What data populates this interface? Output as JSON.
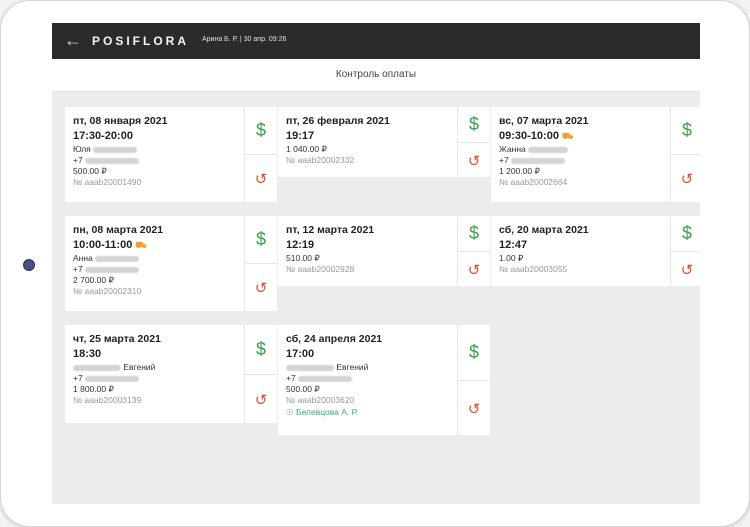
{
  "app": {
    "logo": "POSIFLORA",
    "user_info": "Арина Б. Р. | 30 апр. 09:26",
    "page_title": "Контроль оплаты"
  },
  "icons": {
    "back": "arrow-left-icon",
    "pay": "dollar-icon",
    "refund": "refund-icon",
    "delivery": "delivery-truck-icon",
    "courier": "courier-icon"
  },
  "colors": {
    "pay": "#3aa14a",
    "refund": "#e0502c",
    "topbar": "#2b2b2b",
    "courier": "#3aa97a"
  },
  "orders": [
    {
      "date": "пт, 08 января 2021",
      "time": "17:30-20:00",
      "name": "Юля",
      "phone": "+7",
      "amount": "500.00 ₽",
      "number": "№ aaab20001490"
    },
    {
      "date": "пт, 26 февраля 2021",
      "time": "19:17",
      "amount": "1 040.00 ₽",
      "number": "№ aaab20002332"
    },
    {
      "date": "вс, 07 марта 2021",
      "time": "09:30-10:00",
      "name": "Жанна",
      "phone": "+7",
      "amount": "1 200.00 ₽",
      "number": "№ aaab20002664"
    },
    {
      "date": "пн, 08 марта 2021",
      "time": "10:00-11:00",
      "name": "Анна",
      "phone": "+7",
      "amount": "2 700.00 ₽",
      "number": "№ aaab20002310"
    },
    {
      "date": "пт, 12 марта 2021",
      "time": "12:19",
      "amount": "510.00 ₽",
      "number": "№ aaab20002928"
    },
    {
      "date": "сб, 20 марта 2021",
      "time": "12:47",
      "amount": "1.00 ₽",
      "number": "№ aaab20003055"
    },
    {
      "date": "чт, 25 марта 2021",
      "time": "18:30",
      "name": "Евгений",
      "phone": "+7",
      "amount": "1 800.00 ₽",
      "number": "№ aaab20003139"
    },
    {
      "date": "сб, 24 апреля 2021",
      "time": "17:00",
      "name": "Евгений",
      "phone": "+7",
      "amount": "500.00 ₽",
      "number": "№ aaab20003620",
      "courier": "Белевцова А. Р."
    }
  ]
}
